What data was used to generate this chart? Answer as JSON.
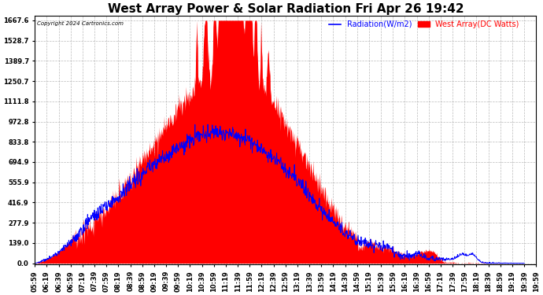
{
  "title": "West Array Power & Solar Radiation Fri Apr 26 19:42",
  "copyright": "Copyright 2024 Cartronics.com",
  "legend_radiation": "Radiation(W/m2)",
  "legend_west": "West Array(DC Watts)",
  "legend_radiation_color": "blue",
  "legend_west_color": "red",
  "ylabel_values": [
    0.0,
    139.0,
    277.9,
    416.9,
    555.9,
    694.9,
    833.8,
    972.8,
    1111.8,
    1250.7,
    1389.7,
    1528.7,
    1667.6
  ],
  "ymax": 1667.6,
  "ymin": 0.0,
  "background_color": "#ffffff",
  "plot_bg_color": "#ffffff",
  "grid_color": "#aaaaaa",
  "fill_color": "red",
  "line_color": "blue",
  "title_fontsize": 11,
  "tick_fontsize": 6.0
}
